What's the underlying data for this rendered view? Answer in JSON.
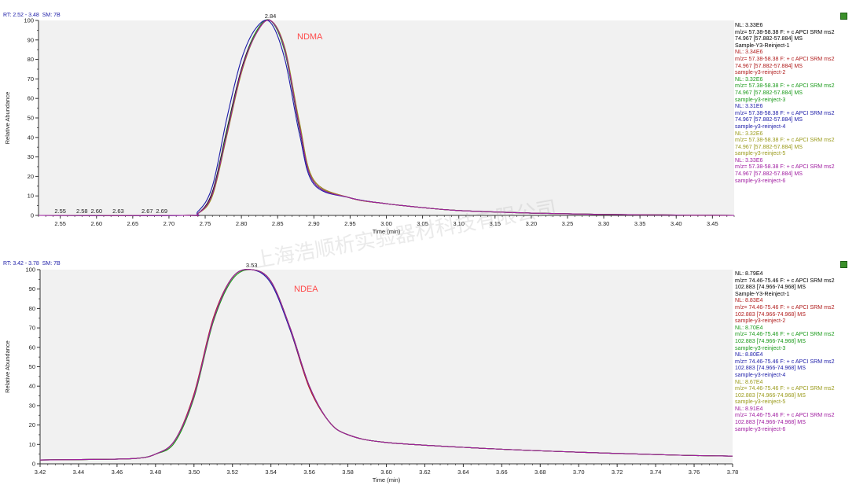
{
  "panels": [
    {
      "header": {
        "rt_label": "RT: 2.52 - 3.48",
        "sm_label": "SM: 7B"
      },
      "compound_label": "NDMA",
      "compound_color": "#ff4a4a",
      "legend": [
        {
          "nl": "NL: 3.33E6",
          "line1": "m/z= 57.38-58.38 F: + c APCI SRM ms2",
          "line2": "74.967 [57.882-57.884]  MS",
          "sample": "Sample-Y3-Reinject-1",
          "color": "#000000"
        },
        {
          "nl": "NL: 3.34E6",
          "line1": "m/z= 57.38-58.38 F: + c APCI SRM ms2",
          "line2": "74.967 [57.882-57.884]  MS",
          "sample": "sample-y3-reinject-2",
          "color": "#b01c1c"
        },
        {
          "nl": "NL: 3.32E6",
          "line1": "m/z= 57.38-58.38 F: + c APCI SRM ms2",
          "line2": "74.967 [57.882-57.884]  MS",
          "sample": "sample-y3-reinject-3",
          "color": "#1a9a1a"
        },
        {
          "nl": "NL: 3.31E6",
          "line1": "m/z= 57.38-58.38 F: + c APCI SRM ms2",
          "line2": "74.967 [57.882-57.884]  MS",
          "sample": "sample-y3-reinject-4",
          "color": "#1c1ca8"
        },
        {
          "nl": "NL: 3.32E6",
          "line1": "m/z= 57.38-58.38 F: + c APCI SRM ms2",
          "line2": "74.967 [57.882-57.884]  MS",
          "sample": "sample-y3-reinject-5",
          "color": "#9a9a1a"
        },
        {
          "nl": "NL: 3.33E6",
          "line1": "m/z= 57.38-58.38 F: + c APCI SRM ms2",
          "line2": "74.967 [57.882-57.884]  MS",
          "sample": "sample-y3-reinject-6",
          "color": "#a01ca0"
        }
      ]
    },
    {
      "header": {
        "rt_label": "RT: 3.42 - 3.78",
        "sm_label": "SM: 7B"
      },
      "compound_label": "NDEA",
      "compound_color": "#ff4a4a",
      "legend": [
        {
          "nl": "NL: 8.79E4",
          "line1": "m/z= 74.46-75.46 F: + c APCI SRM ms2",
          "line2": "102.883 [74.966-74.968]  MS",
          "sample": "Sample-Y3-Reinject-1",
          "color": "#000000"
        },
        {
          "nl": "NL: 8.83E4",
          "line1": "m/z= 74.46-75.46 F: + c APCI SRM ms2",
          "line2": "102.883 [74.966-74.968]  MS",
          "sample": "sample-y3-reinject-2",
          "color": "#b01c1c"
        },
        {
          "nl": "NL: 8.70E4",
          "line1": "m/z= 74.46-75.46 F: + c APCI SRM ms2",
          "line2": "102.883 [74.966-74.968]  MS",
          "sample": "sample-y3-reinject-3",
          "color": "#1a9a1a"
        },
        {
          "nl": "NL: 8.80E4",
          "line1": "m/z= 74.46-75.46 F: + c APCI SRM ms2",
          "line2": "102.883 [74.966-74.968]  MS",
          "sample": "sample-y3-reinject-4",
          "color": "#1c1ca8"
        },
        {
          "nl": "NL: 8.67E4",
          "line1": "m/z= 74.46-75.46 F: + c APCI SRM ms2",
          "line2": "102.883 [74.966-74.968]  MS",
          "sample": "sample-y3-reinject-5",
          "color": "#9a9a1a"
        },
        {
          "nl": "NL: 8.91E4",
          "line1": "m/z= 74.46-75.46 F: + c APCI SRM ms2",
          "line2": "102.883 [74.966-74.968]  MS",
          "sample": "sample-y3-reinject-6",
          "color": "#a01ca0"
        }
      ]
    }
  ],
  "watermark": "上海浩顺析实验器材科技有限公司",
  "chart_data": [
    {
      "type": "line",
      "xlabel": "Time (min)",
      "ylabel": "Relative Abundance",
      "xlim": [
        2.52,
        3.48
      ],
      "ylim": [
        0,
        100
      ],
      "xticks": [
        "2.55",
        "2.60",
        "2.65",
        "2.70",
        "2.75",
        "2.80",
        "2.85",
        "2.90",
        "2.95",
        "3.00",
        "3.05",
        "3.10",
        "3.15",
        "3.20",
        "3.25",
        "3.30",
        "3.35",
        "3.40",
        "3.45"
      ],
      "yticks": [
        "0",
        "10",
        "20",
        "30",
        "40",
        "50",
        "60",
        "70",
        "80",
        "90",
        "100"
      ],
      "peak_labels": [
        {
          "x": 2.84,
          "y": 100,
          "text": "2.84"
        },
        {
          "x": 2.55,
          "y": 0,
          "text": "2.55"
        },
        {
          "x": 2.58,
          "y": 0,
          "text": "2.58"
        },
        {
          "x": 2.6,
          "y": 0,
          "text": "2.60"
        },
        {
          "x": 2.63,
          "y": 0,
          "text": "2.63"
        },
        {
          "x": 2.67,
          "y": 0,
          "text": "2.67"
        },
        {
          "x": 2.69,
          "y": 0,
          "text": "2.69"
        }
      ],
      "x": [
        2.52,
        2.72,
        2.74,
        2.76,
        2.78,
        2.8,
        2.82,
        2.84,
        2.86,
        2.88,
        2.9,
        2.95,
        3.0,
        3.05,
        3.1,
        3.2,
        3.3,
        3.4,
        3.48
      ],
      "series": [
        {
          "color": "#000000",
          "values": [
            0,
            0,
            1,
            12,
            44,
            75,
            94,
            100,
            84,
            45,
            17,
            9,
            6,
            4,
            2.5,
            1.2,
            0.5,
            0.2,
            0
          ]
        },
        {
          "color": "#b01c1c",
          "values": [
            0,
            0,
            1,
            11,
            42,
            74,
            93,
            100,
            85,
            47,
            18,
            9,
            6,
            4,
            2.5,
            1.2,
            0.5,
            0.2,
            0
          ]
        },
        {
          "color": "#1a9a1a",
          "values": [
            0,
            0,
            1,
            11,
            43,
            74,
            94,
            100,
            84,
            46,
            17,
            9,
            6,
            4,
            2.5,
            1.2,
            0.5,
            0.2,
            0
          ]
        },
        {
          "color": "#1c1ca8",
          "values": [
            0,
            0,
            2,
            15,
            50,
            80,
            96,
            99,
            80,
            42,
            16,
            9,
            6,
            4,
            2.5,
            1.2,
            0.5,
            0.2,
            0
          ]
        },
        {
          "color": "#9a9a1a",
          "values": [
            0,
            0,
            1,
            10,
            41,
            73,
            93,
            100,
            86,
            48,
            18,
            9,
            6,
            4,
            2.5,
            1.2,
            0.5,
            0.2,
            0
          ]
        },
        {
          "color": "#a01ca0",
          "values": [
            0,
            0,
            1,
            11,
            42,
            74,
            93,
            100,
            85,
            46,
            17,
            9,
            6,
            4,
            2.5,
            1.2,
            0.5,
            0.2,
            0
          ]
        }
      ]
    },
    {
      "type": "line",
      "xlabel": "Time (min)",
      "ylabel": "Relative Abundance",
      "xlim": [
        3.42,
        3.78
      ],
      "ylim": [
        0,
        100
      ],
      "xticks": [
        "3.42",
        "3.44",
        "3.46",
        "3.48",
        "3.50",
        "3.52",
        "3.54",
        "3.56",
        "3.58",
        "3.60",
        "3.62",
        "3.64",
        "3.66",
        "3.68",
        "3.70",
        "3.72",
        "3.74",
        "3.76",
        "3.78"
      ],
      "yticks": [
        "0",
        "10",
        "20",
        "30",
        "40",
        "50",
        "60",
        "70",
        "80",
        "90",
        "100"
      ],
      "peak_labels": [
        {
          "x": 3.53,
          "y": 100,
          "text": "3.53"
        }
      ],
      "x": [
        3.42,
        3.45,
        3.47,
        3.48,
        3.49,
        3.5,
        3.51,
        3.52,
        3.53,
        3.54,
        3.55,
        3.56,
        3.57,
        3.58,
        3.6,
        3.65,
        3.7,
        3.75,
        3.78
      ],
      "series": [
        {
          "color": "#000000",
          "values": [
            2,
            2.3,
            2.8,
            5,
            12,
            35,
            74,
            96,
            100,
            94,
            70,
            40,
            22,
            15,
            11,
            8,
            6,
            4.5,
            4
          ]
        },
        {
          "color": "#b01c1c",
          "values": [
            2,
            2.3,
            2.8,
            5,
            12,
            36,
            75,
            96,
            100,
            94,
            69,
            39,
            22,
            15,
            11,
            8,
            6,
            4.5,
            4
          ]
        },
        {
          "color": "#1a9a1a",
          "values": [
            2,
            2.3,
            2.8,
            5,
            11,
            34,
            73,
            95,
            100,
            94,
            70,
            40,
            22,
            15,
            11,
            8,
            6,
            4.5,
            4
          ]
        },
        {
          "color": "#1c1ca8",
          "values": [
            2,
            2.3,
            2.8,
            5,
            12,
            35,
            74,
            96,
            100,
            93,
            69,
            40,
            22,
            15,
            11,
            8,
            6,
            4.5,
            4
          ]
        },
        {
          "color": "#9a9a1a",
          "values": [
            2,
            2.3,
            2.8,
            5,
            12,
            35,
            74,
            96,
            100,
            94,
            70,
            40,
            22,
            15,
            11,
            8,
            6,
            4.5,
            4
          ]
        },
        {
          "color": "#a01ca0",
          "values": [
            2,
            2.3,
            2.8,
            5,
            12,
            35,
            74,
            96,
            100,
            94,
            70,
            40,
            22,
            15,
            11,
            8,
            6,
            4.5,
            4
          ]
        }
      ]
    }
  ]
}
